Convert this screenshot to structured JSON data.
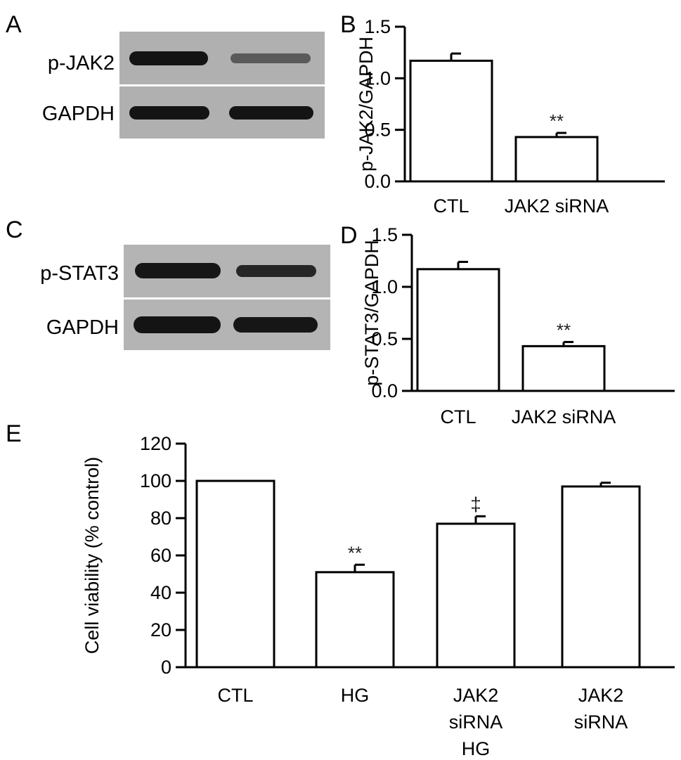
{
  "panels": {
    "A": "A",
    "B": "B",
    "C": "C",
    "D": "D",
    "E": "E"
  },
  "blots": [
    {
      "id": "A",
      "rows": [
        {
          "label": "p-JAK2",
          "band_intensities": [
            1.0,
            0.4
          ]
        },
        {
          "label": "GAPDH",
          "band_intensities": [
            1.0,
            1.0
          ]
        }
      ]
    },
    {
      "id": "C",
      "rows": [
        {
          "label": "p-STAT3",
          "band_intensities": [
            1.0,
            0.7
          ]
        },
        {
          "label": "GAPDH",
          "band_intensities": [
            1.0,
            1.0
          ]
        }
      ]
    }
  ],
  "chart_data": [
    {
      "id": "B",
      "type": "bar",
      "categories": [
        "CTL",
        "JAK2 siRNA"
      ],
      "values": [
        1.17,
        0.43
      ],
      "errors": [
        0.07,
        0.04
      ],
      "annotations": [
        "",
        "**"
      ],
      "ylabel": "p-JAK2/GAPDH",
      "ylim": [
        0,
        1.5
      ],
      "yticks": [
        0.0,
        0.5,
        1.0,
        1.5
      ],
      "ytick_labels": [
        "0.0",
        "0.5",
        "1.0",
        "1.5"
      ]
    },
    {
      "id": "D",
      "type": "bar",
      "categories": [
        "CTL",
        "JAK2 siRNA"
      ],
      "values": [
        1.17,
        0.43
      ],
      "errors": [
        0.07,
        0.04
      ],
      "annotations": [
        "",
        "**"
      ],
      "ylabel": "p-STAT3/GAPDH",
      "ylim": [
        0,
        1.5
      ],
      "yticks": [
        0.0,
        0.5,
        1.0,
        1.5
      ],
      "ytick_labels": [
        "0.0",
        "0.5",
        "1.0",
        "1.5"
      ]
    },
    {
      "id": "E",
      "type": "bar",
      "categories": [
        [
          "CTL"
        ],
        [
          "HG"
        ],
        [
          "JAK2",
          "siRNA",
          "HG"
        ],
        [
          "JAK2",
          "siRNA"
        ]
      ],
      "values": [
        100,
        51,
        77,
        97
      ],
      "errors": [
        0,
        4,
        4,
        2
      ],
      "annotations": [
        "",
        "**",
        "‡",
        ""
      ],
      "ylabel": "Cell viability (% control)",
      "ylim": [
        0,
        120
      ],
      "yticks": [
        0,
        20,
        40,
        60,
        80,
        100,
        120
      ],
      "ytick_labels": [
        "0",
        "20",
        "40",
        "60",
        "80",
        "100",
        "120"
      ]
    }
  ]
}
